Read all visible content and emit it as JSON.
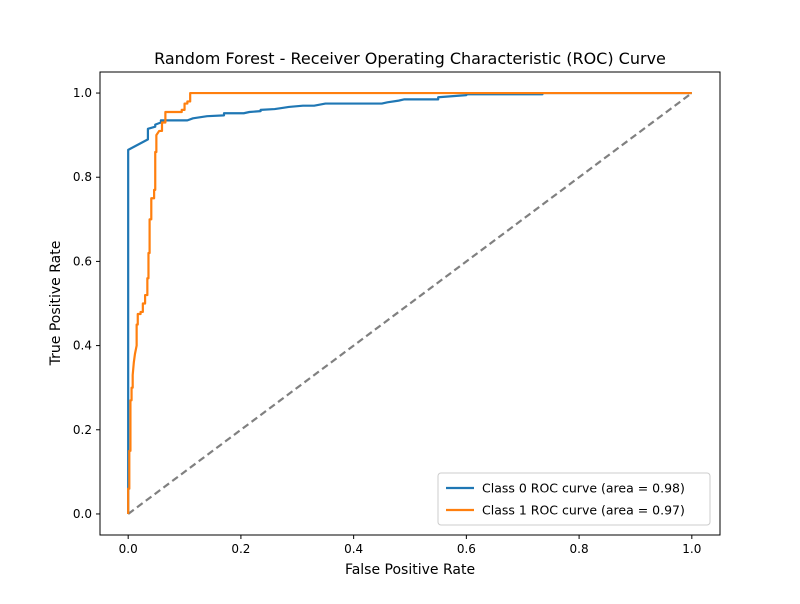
{
  "chart_data": {
    "type": "line",
    "title": "Random Forest - Receiver Operating Characteristic (ROC) Curve",
    "xlabel": "False Positive Rate",
    "ylabel": "True Positive Rate",
    "xlim": [
      -0.05,
      1.05
    ],
    "ylim": [
      -0.05,
      1.05
    ],
    "xticks": [
      0.0,
      0.2,
      0.4,
      0.6,
      0.8,
      1.0
    ],
    "yticks": [
      0.0,
      0.2,
      0.4,
      0.6,
      0.8,
      1.0
    ],
    "xtick_labels": [
      "0.0",
      "0.2",
      "0.4",
      "0.6",
      "0.8",
      "1.0"
    ],
    "ytick_labels": [
      "0.0",
      "0.2",
      "0.4",
      "0.6",
      "0.8",
      "1.0"
    ],
    "grid": false,
    "legend_position": "lower-right",
    "series": [
      {
        "name": "Class 0 ROC curve (area = 0.98)",
        "color": "#1f77b4",
        "x": [
          0.0,
          0.0,
          0.0,
          0.0,
          0.035,
          0.035,
          0.048,
          0.048,
          0.058,
          0.058,
          0.105,
          0.115,
          0.14,
          0.17,
          0.17,
          0.205,
          0.215,
          0.235,
          0.235,
          0.26,
          0.275,
          0.285,
          0.31,
          0.33,
          0.35,
          0.45,
          0.46,
          0.48,
          0.49,
          0.55,
          0.55,
          0.6,
          0.6,
          0.735,
          0.735,
          1.0
        ],
        "y": [
          0.0,
          0.55,
          0.8,
          0.865,
          0.89,
          0.915,
          0.92,
          0.925,
          0.93,
          0.935,
          0.935,
          0.94,
          0.945,
          0.947,
          0.952,
          0.952,
          0.955,
          0.957,
          0.96,
          0.962,
          0.965,
          0.967,
          0.97,
          0.97,
          0.975,
          0.975,
          0.978,
          0.982,
          0.985,
          0.985,
          0.99,
          0.995,
          0.997,
          0.997,
          1.0,
          1.0
        ]
      },
      {
        "name": "Class 1 ROC curve (area = 0.97)",
        "color": "#ff7f0e",
        "x": [
          0.0,
          0.0,
          0.002,
          0.002,
          0.004,
          0.004,
          0.006,
          0.006,
          0.008,
          0.008,
          0.01,
          0.012,
          0.015,
          0.015,
          0.017,
          0.017,
          0.022,
          0.022,
          0.026,
          0.026,
          0.03,
          0.03,
          0.034,
          0.034,
          0.036,
          0.036,
          0.038,
          0.038,
          0.041,
          0.041,
          0.046,
          0.046,
          0.048,
          0.048,
          0.05,
          0.05,
          0.055,
          0.06,
          0.06,
          0.066,
          0.066,
          0.095,
          0.095,
          0.1,
          0.1,
          0.105,
          0.105,
          0.11,
          0.11,
          1.0
        ],
        "y": [
          0.0,
          0.06,
          0.06,
          0.15,
          0.15,
          0.27,
          0.27,
          0.3,
          0.3,
          0.33,
          0.36,
          0.38,
          0.4,
          0.45,
          0.45,
          0.475,
          0.475,
          0.48,
          0.48,
          0.5,
          0.5,
          0.52,
          0.52,
          0.56,
          0.56,
          0.62,
          0.62,
          0.7,
          0.7,
          0.75,
          0.75,
          0.77,
          0.77,
          0.86,
          0.86,
          0.9,
          0.91,
          0.91,
          0.93,
          0.93,
          0.955,
          0.955,
          0.96,
          0.96,
          0.975,
          0.975,
          0.98,
          0.98,
          1.0,
          1.0
        ]
      },
      {
        "name": "",
        "color": "#808080",
        "dashed": true,
        "x": [
          0.0,
          1.0
        ],
        "y": [
          0.0,
          1.0
        ]
      }
    ]
  }
}
